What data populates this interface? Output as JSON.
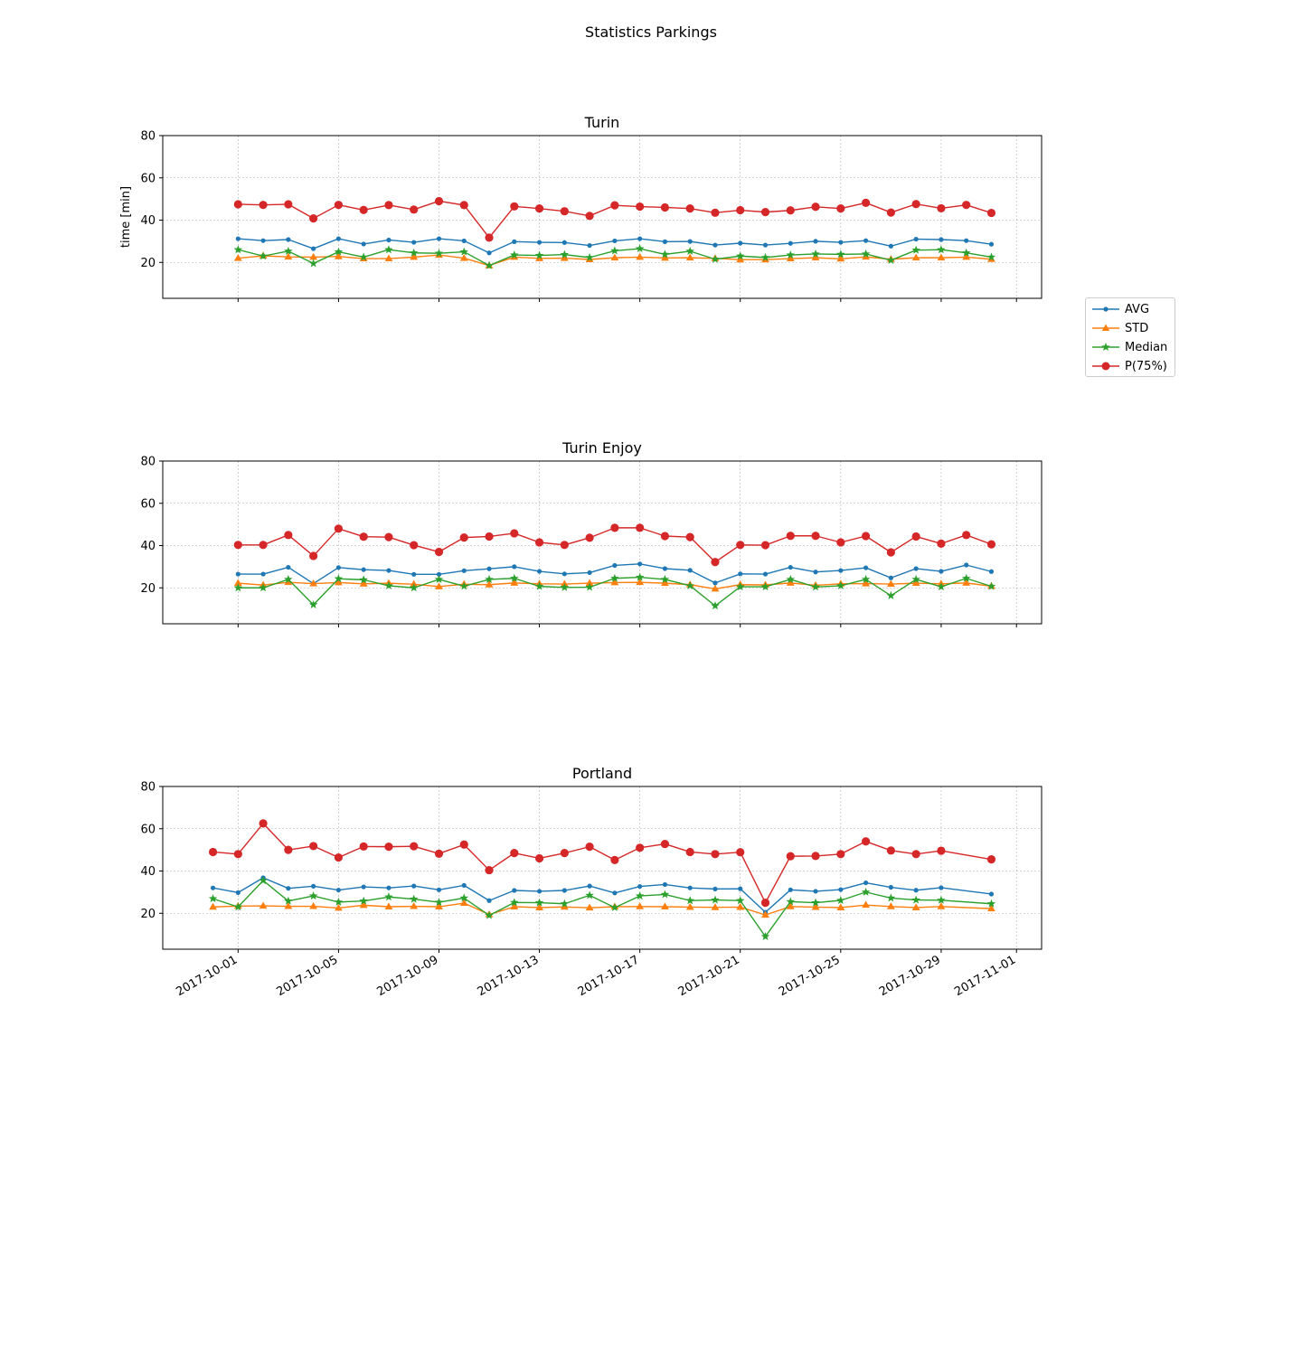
{
  "figure": {
    "title": "Statistics Parkings"
  },
  "legend": [
    {
      "label": "AVG",
      "color": "#1f77b4",
      "marker": "circle-small"
    },
    {
      "label": "STD",
      "color": "#ff7f0e",
      "marker": "triangle"
    },
    {
      "label": "Median",
      "color": "#2ca02c",
      "marker": "star"
    },
    {
      "label": "P(75%)",
      "color": "#d62728",
      "marker": "circle-large"
    }
  ],
  "chart_data": [
    {
      "type": "line",
      "title": "Turin",
      "ylabel": "time [min]",
      "xlabel": "",
      "ylim": [
        3,
        80
      ],
      "yticks": [
        20,
        40,
        60,
        80
      ],
      "xlim": [
        "2017-09-28",
        "2017-11-02"
      ],
      "xticks": [
        "2017-10-01",
        "2017-10-05",
        "2017-10-09",
        "2017-10-13",
        "2017-10-17",
        "2017-10-21",
        "2017-10-25",
        "2017-10-29",
        "2017-11-01"
      ],
      "show_xtick_labels": false,
      "grid": true,
      "x": [
        "2017-10-01",
        "2017-10-02",
        "2017-10-03",
        "2017-10-04",
        "2017-10-05",
        "2017-10-06",
        "2017-10-07",
        "2017-10-08",
        "2017-10-09",
        "2017-10-10",
        "2017-10-11",
        "2017-10-12",
        "2017-10-13",
        "2017-10-14",
        "2017-10-15",
        "2017-10-16",
        "2017-10-17",
        "2017-10-18",
        "2017-10-19",
        "2017-10-20",
        "2017-10-21",
        "2017-10-22",
        "2017-10-23",
        "2017-10-24",
        "2017-10-25",
        "2017-10-26",
        "2017-10-27",
        "2017-10-28",
        "2017-10-29",
        "2017-10-30",
        "2017-10-31"
      ],
      "series": [
        {
          "name": "AVG",
          "values": [
            31.2,
            30.3,
            30.8,
            26.5,
            31.2,
            28.7,
            30.6,
            29.5,
            31.2,
            30.2,
            24.5,
            29.8,
            29.5,
            29.4,
            28.0,
            30.2,
            31.2,
            29.8,
            29.9,
            28.2,
            29.1,
            28.2,
            29.0,
            30.0,
            29.5,
            30.3,
            27.7,
            31.0,
            30.8,
            30.3,
            28.6
          ]
        },
        {
          "name": "STD",
          "values": [
            22.0,
            23.1,
            22.6,
            22.5,
            22.8,
            21.8,
            21.8,
            22.5,
            23.5,
            22.0,
            18.5,
            22.5,
            21.9,
            22.0,
            21.4,
            22.2,
            22.5,
            22.1,
            22.2,
            21.9,
            21.3,
            21.3,
            21.8,
            22.2,
            21.7,
            22.6,
            21.5,
            22.2,
            22.2,
            22.5,
            21.5
          ]
        },
        {
          "name": "Median",
          "values": [
            26.0,
            23.0,
            25.3,
            19.5,
            25.0,
            22.5,
            26.0,
            24.5,
            24.3,
            25.0,
            18.5,
            23.5,
            23.3,
            23.7,
            22.3,
            25.5,
            26.5,
            23.8,
            25.3,
            21.5,
            23.0,
            22.3,
            23.5,
            24.0,
            23.8,
            24.0,
            21.0,
            25.8,
            26.0,
            24.5,
            22.5
          ]
        },
        {
          "name": "P(75%)",
          "values": [
            47.5,
            47.2,
            47.5,
            40.8,
            47.2,
            44.8,
            47.1,
            45.0,
            49.0,
            47.1,
            31.7,
            46.5,
            45.5,
            44.2,
            42.0,
            47.0,
            46.4,
            46.0,
            45.5,
            43.5,
            44.7,
            43.8,
            44.6,
            46.3,
            45.5,
            48.2,
            43.6,
            47.6,
            45.6,
            47.2,
            43.4
          ]
        }
      ]
    },
    {
      "type": "line",
      "title": "Turin Enjoy",
      "ylabel": "",
      "xlabel": "",
      "ylim": [
        3,
        80
      ],
      "yticks": [
        20,
        40,
        60,
        80
      ],
      "xlim": [
        "2017-09-28",
        "2017-11-02"
      ],
      "xticks": [
        "2017-10-01",
        "2017-10-05",
        "2017-10-09",
        "2017-10-13",
        "2017-10-17",
        "2017-10-21",
        "2017-10-25",
        "2017-10-29",
        "2017-11-01"
      ],
      "show_xtick_labels": false,
      "grid": true,
      "x": [
        "2017-10-01",
        "2017-10-02",
        "2017-10-03",
        "2017-10-04",
        "2017-10-05",
        "2017-10-06",
        "2017-10-07",
        "2017-10-08",
        "2017-10-09",
        "2017-10-10",
        "2017-10-11",
        "2017-10-12",
        "2017-10-13",
        "2017-10-14",
        "2017-10-15",
        "2017-10-16",
        "2017-10-17",
        "2017-10-18",
        "2017-10-19",
        "2017-10-20",
        "2017-10-21",
        "2017-10-22",
        "2017-10-23",
        "2017-10-24",
        "2017-10-25",
        "2017-10-26",
        "2017-10-27",
        "2017-10-28",
        "2017-10-29",
        "2017-10-30",
        "2017-10-31"
      ],
      "series": [
        {
          "name": "AVG",
          "values": [
            26.5,
            26.5,
            29.7,
            22.0,
            29.6,
            28.6,
            28.2,
            26.4,
            26.4,
            28.1,
            29.0,
            30.0,
            27.8,
            26.6,
            27.2,
            30.6,
            31.3,
            29.1,
            28.3,
            22.3,
            26.6,
            26.5,
            29.7,
            27.5,
            28.2,
            29.5,
            24.7,
            29.1,
            27.8,
            30.8,
            27.7
          ]
        },
        {
          "name": "STD",
          "values": [
            22.2,
            21.3,
            22.6,
            22.0,
            22.5,
            21.9,
            22.2,
            21.7,
            20.6,
            21.7,
            21.5,
            22.3,
            21.9,
            21.8,
            22.2,
            22.5,
            22.6,
            22.2,
            21.5,
            19.5,
            21.5,
            21.4,
            22.3,
            21.2,
            21.9,
            22.0,
            21.8,
            22.2,
            21.9,
            22.3,
            20.8
          ]
        },
        {
          "name": "Median",
          "values": [
            20.0,
            20.0,
            24.0,
            12.0,
            24.3,
            23.8,
            21.0,
            20.0,
            24.0,
            20.8,
            24.0,
            24.5,
            20.7,
            20.2,
            20.3,
            24.5,
            25.0,
            24.0,
            21.0,
            11.5,
            20.5,
            20.5,
            24.0,
            20.4,
            21.0,
            24.0,
            16.3,
            24.0,
            20.5,
            24.5,
            20.7
          ]
        },
        {
          "name": "P(75%)",
          "values": [
            40.3,
            40.3,
            45.0,
            35.1,
            48.0,
            44.2,
            44.0,
            40.2,
            37.0,
            43.8,
            44.3,
            45.8,
            41.5,
            40.3,
            43.7,
            48.4,
            48.4,
            44.5,
            44.0,
            32.2,
            40.3,
            40.2,
            44.6,
            44.6,
            41.5,
            44.5,
            36.8,
            44.3,
            40.9,
            45.0,
            40.6
          ]
        }
      ]
    },
    {
      "type": "line",
      "title": "Portland",
      "ylabel": "",
      "xlabel": "",
      "ylim": [
        3,
        80
      ],
      "yticks": [
        20,
        40,
        60,
        80
      ],
      "xlim": [
        "2017-09-28",
        "2017-11-02"
      ],
      "xticks": [
        "2017-10-01",
        "2017-10-05",
        "2017-10-09",
        "2017-10-13",
        "2017-10-17",
        "2017-10-21",
        "2017-10-25",
        "2017-10-29",
        "2017-11-01"
      ],
      "show_xtick_labels": true,
      "grid": true,
      "x": [
        "2017-09-30",
        "2017-10-01",
        "2017-10-02",
        "2017-10-03",
        "2017-10-04",
        "2017-10-05",
        "2017-10-06",
        "2017-10-07",
        "2017-10-08",
        "2017-10-09",
        "2017-10-10",
        "2017-10-11",
        "2017-10-12",
        "2017-10-13",
        "2017-10-14",
        "2017-10-15",
        "2017-10-16",
        "2017-10-17",
        "2017-10-18",
        "2017-10-19",
        "2017-10-20",
        "2017-10-21",
        "2017-10-22",
        "2017-10-23",
        "2017-10-24",
        "2017-10-25",
        "2017-10-26",
        "2017-10-27",
        "2017-10-28",
        "2017-10-29",
        "2017-10-31"
      ],
      "series": [
        {
          "name": "AVG",
          "values": [
            32.0,
            29.8,
            36.8,
            31.8,
            32.8,
            31.0,
            32.5,
            32.0,
            32.9,
            31.1,
            33.2,
            26.0,
            30.8,
            30.4,
            30.8,
            32.9,
            29.6,
            32.7,
            33.6,
            32.0,
            31.5,
            31.6,
            20.5,
            31.1,
            30.4,
            31.2,
            34.4,
            32.3,
            30.9,
            32.1,
            29.1
          ]
        },
        {
          "name": "STD",
          "values": [
            23.0,
            23.4,
            23.5,
            23.3,
            23.3,
            22.5,
            23.8,
            23.1,
            23.3,
            23.1,
            24.8,
            19.4,
            23.1,
            22.7,
            23.0,
            22.6,
            23.1,
            23.2,
            23.1,
            22.9,
            22.8,
            22.9,
            19.2,
            23.2,
            22.9,
            22.7,
            23.9,
            23.2,
            22.7,
            23.2,
            22.2
          ]
        },
        {
          "name": "Median",
          "values": [
            26.9,
            23.0,
            35.5,
            25.8,
            28.2,
            25.3,
            25.8,
            27.7,
            26.7,
            25.2,
            27.2,
            19.0,
            25.1,
            25.0,
            24.5,
            28.5,
            22.7,
            28.2,
            28.9,
            26.0,
            26.3,
            26.0,
            9.0,
            25.5,
            25.0,
            26.1,
            30.0,
            27.2,
            26.3,
            26.2,
            24.5
          ]
        },
        {
          "name": "P(75%)",
          "values": [
            49.0,
            48.0,
            62.5,
            50.0,
            51.8,
            46.4,
            51.6,
            51.5,
            51.7,
            48.2,
            52.5,
            40.4,
            48.5,
            46.0,
            48.5,
            51.5,
            45.2,
            51.0,
            52.8,
            49.0,
            48.0,
            48.9,
            25.0,
            47.0,
            47.1,
            48.0,
            54.0,
            49.7,
            48.0,
            49.6,
            45.5
          ]
        }
      ]
    }
  ]
}
